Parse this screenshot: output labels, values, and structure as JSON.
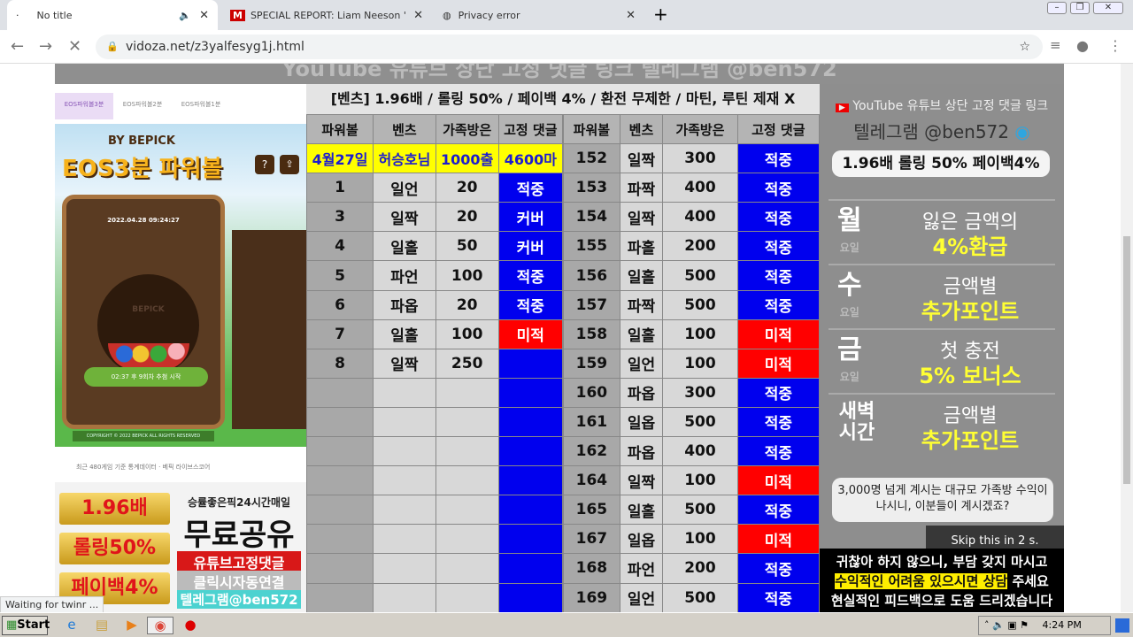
{
  "browser": {
    "tabs": [
      {
        "title": "No title",
        "icon": "loading-dot-icon"
      },
      {
        "title": "SPECIAL REPORT: Liam Neeson 's La",
        "icon": "m-logo-icon"
      },
      {
        "title": "Privacy error",
        "icon": "globe-icon"
      }
    ],
    "url": "vidoza.net/z3yalfesyg1j.html",
    "status": "Waiting for twinr ..."
  },
  "video": {
    "top_banner": "YouTube 유튜브 상단 고정 댓글 링크 텔레그램 @ben572",
    "header": "[벤츠] 1.96배 / 롤링 50% / 페이백 4% / 환전 무제한 / 마틴, 루틴 제재 X",
    "columns": [
      "파워볼",
      "벤츠",
      "가족방은",
      "고정 댓글"
    ],
    "left_highlight": [
      "4월27일",
      "허승호님",
      "1000출",
      "4600마"
    ],
    "left_rows": [
      [
        "1",
        "일언",
        "20",
        "적중"
      ],
      [
        "3",
        "일짝",
        "20",
        "커버"
      ],
      [
        "4",
        "일홀",
        "50",
        "커버"
      ],
      [
        "5",
        "파언",
        "100",
        "적중"
      ],
      [
        "6",
        "파옵",
        "20",
        "적중"
      ],
      [
        "7",
        "일홀",
        "100",
        "미적"
      ],
      [
        "8",
        "일짝",
        "250",
        ""
      ]
    ],
    "right_rows": [
      [
        "152",
        "일짝",
        "300",
        "적중"
      ],
      [
        "153",
        "파짝",
        "400",
        "적중"
      ],
      [
        "154",
        "일짝",
        "400",
        "적중"
      ],
      [
        "155",
        "파홀",
        "200",
        "적중"
      ],
      [
        "156",
        "일홀",
        "500",
        "적중"
      ],
      [
        "157",
        "파짝",
        "500",
        "적중"
      ],
      [
        "158",
        "일홀",
        "100",
        "미적"
      ],
      [
        "159",
        "일언",
        "100",
        "미적"
      ],
      [
        "160",
        "파옵",
        "300",
        "적중"
      ],
      [
        "161",
        "일옵",
        "500",
        "적중"
      ],
      [
        "162",
        "파옵",
        "400",
        "적중"
      ],
      [
        "164",
        "일짝",
        "100",
        "미적"
      ],
      [
        "165",
        "일홀",
        "500",
        "적중"
      ],
      [
        "167",
        "일옵",
        "100",
        "미적"
      ],
      [
        "168",
        "파언",
        "200",
        "적중"
      ],
      [
        "169",
        "일언",
        "500",
        "적중"
      ]
    ],
    "colors": {
      "hit": "#0000ee",
      "miss": "#ff0000",
      "highlight": "#ffff00"
    },
    "game": {
      "tabs": [
        "EOS파워볼3분",
        "EOS파워볼2분",
        "EOS파워볼1분"
      ],
      "by": "BY BEPICK",
      "logo": "EOS3분 파워볼",
      "date": "2022.04.28 09:24:27",
      "bowl_label": "BEPICK",
      "timer": "02:37 후 9회차 추첨 시작",
      "copyright": "COPYRIGHT © 2022 BEPICK ALL RIGHTS RESERVED",
      "stats": "최근 480게임 기준 통계데이터 · 베픽 라이브스코어"
    },
    "ad": {
      "gold": [
        "1.96배",
        "롤링50%",
        "페이백4%"
      ],
      "line1": "승률좋은픽24시간매일",
      "line2": "무료공유",
      "line3": "유튜브고정댓글",
      "line4": "클릭시자동연결",
      "line5": "텔레그램@ben572"
    },
    "right": {
      "yt": "YouTube 유튜브 상단 고정 댓글 링크",
      "tg": "텔레그램 @ben572",
      "pill": "1.96배 롤링 50% 페이백4%",
      "promos": [
        {
          "day": "월",
          "sub": "요일",
          "l1": "잃은 금액의",
          "l2": "4%환급"
        },
        {
          "day": "수",
          "sub": "요일",
          "l1": "금액별",
          "l2": "추가포인트"
        },
        {
          "day": "금",
          "sub": "요일",
          "l1": "첫 충전",
          "l2": "5% 보너스"
        },
        {
          "day": "새벽시간",
          "sub": "",
          "l1": "금액별",
          "l2": "추가포인트"
        }
      ],
      "quote": "3,000명 넘게 계시는 대규모 가족방 수익이 나시니, 이분들이 계시겠죠?"
    },
    "skip": "Skip this in 2 s.",
    "subtitle": [
      "귀찮아 하지 않으니, 부담 갖지 마시고",
      "수익적인 어려움 있으시면 상담",
      "주세요",
      "현실적인 피드백으로 도움 드리겠습니다"
    ]
  },
  "taskbar": {
    "start": "Start",
    "time": "4:24 PM"
  }
}
